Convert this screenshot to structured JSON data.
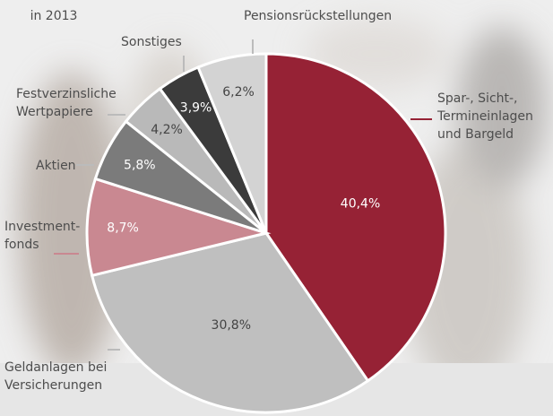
{
  "chart_data": {
    "type": "pie",
    "subtitle": "in 2013",
    "categories": [
      "Spar-, Sicht-,\nTermineinlagen\nund Bargeld",
      "Geldanlagen bei\nVersicherungen",
      "Investment-\nfonds",
      "Aktien",
      "Festverzinsliche\nWertpapiere",
      "Sonstiges",
      "Pensionsrückstellungen"
    ],
    "values": [
      40.4,
      30.8,
      8.7,
      5.8,
      4.2,
      3.9,
      6.2
    ],
    "value_labels": [
      "40,4%",
      "30,8%",
      "8,7%",
      "5,8%",
      "4,2%",
      "3,9%",
      "6,2%"
    ],
    "colors": [
      "#962235",
      "#bfbfbf",
      "#c98891",
      "#7b7b7b",
      "#b9b9b9",
      "#3b3b3b",
      "#d3d3d3"
    ]
  }
}
